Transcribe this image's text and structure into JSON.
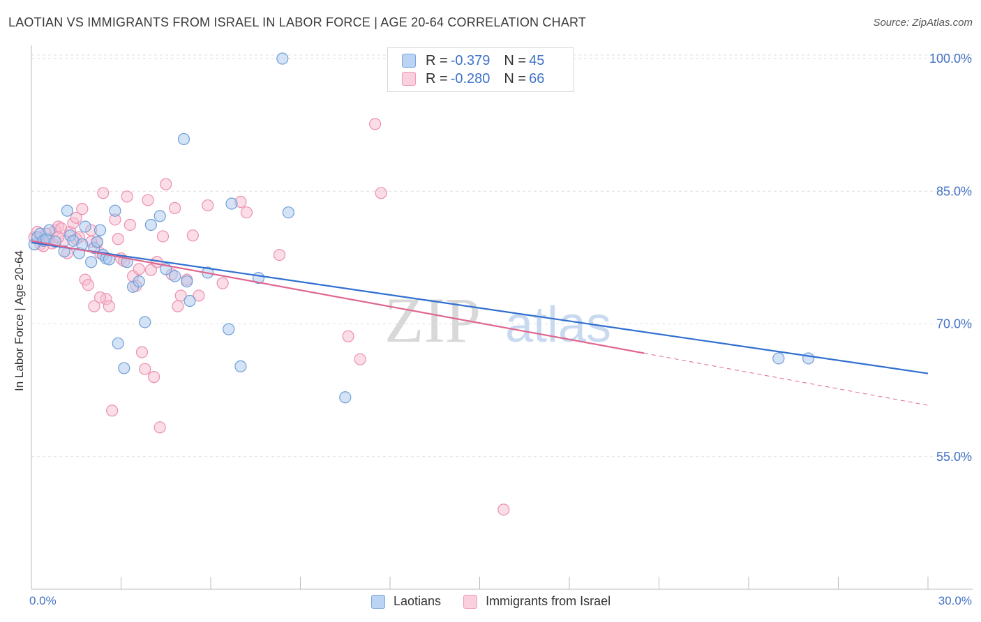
{
  "header": {
    "title": "LAOTIAN VS IMMIGRANTS FROM ISRAEL IN LABOR FORCE | AGE 20-64 CORRELATION CHART",
    "source": "Source: ZipAtlas.com"
  },
  "watermark": {
    "zip": "ZIP",
    "atlas": "atlas"
  },
  "legend_top": {
    "rows": [
      {
        "r_label": "R = ",
        "r_value": "-0.379",
        "n_label": "N = ",
        "n_value": "45"
      },
      {
        "r_label": "R = ",
        "r_value": "-0.280",
        "n_label": "N = ",
        "n_value": "66"
      }
    ]
  },
  "colors": {
    "blue_fill": "#a9c8ee",
    "blue_stroke": "#6f9fd8",
    "blue_line": "#2f6fcf",
    "pink_fill": "#f7bcd0",
    "pink_stroke": "#eb90ae",
    "pink_line": "#e0668f",
    "axis_text": "#4472c4",
    "grid": "#dddddd"
  },
  "chart_data": {
    "type": "scatter",
    "title": "LAOTIAN VS IMMIGRANTS FROM ISRAEL IN LABOR FORCE | AGE 20-64 CORRELATION CHART",
    "xlabel": "",
    "ylabel": "In Labor Force | Age 20-64",
    "xlim": [
      0,
      30
    ],
    "ylim": [
      40,
      101.5
    ],
    "x_tick_labels": [
      "0.0%",
      "30.0%"
    ],
    "y_ticks": [
      55,
      70,
      85,
      100
    ],
    "y_tick_labels": [
      "55.0%",
      "70.0%",
      "85.0%",
      "100.0%"
    ],
    "grid": true,
    "legend_placement": "bottom-center",
    "series": [
      {
        "name": "Laotians",
        "color": "#a9c8ee",
        "r": -0.379,
        "n": 45,
        "trend": {
          "x0": 0.0,
          "y0": 79.2,
          "x1": 30.0,
          "y1": 64.4,
          "dashed_from": null
        },
        "points": [
          [
            0.1,
            79.0
          ],
          [
            0.2,
            79.8
          ],
          [
            0.3,
            80.2
          ],
          [
            0.4,
            79.4
          ],
          [
            0.5,
            79.6
          ],
          [
            0.6,
            80.6
          ],
          [
            0.8,
            79.3
          ],
          [
            1.1,
            78.2
          ],
          [
            1.2,
            82.8
          ],
          [
            1.3,
            80.0
          ],
          [
            1.4,
            79.4
          ],
          [
            1.6,
            78.0
          ],
          [
            1.7,
            79.0
          ],
          [
            1.8,
            81.0
          ],
          [
            2.0,
            77.0
          ],
          [
            2.1,
            78.6
          ],
          [
            2.2,
            79.3
          ],
          [
            2.3,
            80.6
          ],
          [
            2.4,
            77.8
          ],
          [
            2.5,
            77.4
          ],
          [
            2.6,
            77.3
          ],
          [
            2.8,
            82.8
          ],
          [
            2.9,
            67.8
          ],
          [
            3.1,
            65.0
          ],
          [
            3.2,
            77.0
          ],
          [
            3.4,
            74.2
          ],
          [
            3.6,
            74.8
          ],
          [
            3.8,
            70.2
          ],
          [
            4.0,
            81.2
          ],
          [
            4.3,
            82.2
          ],
          [
            4.5,
            76.2
          ],
          [
            4.8,
            75.4
          ],
          [
            5.1,
            90.9
          ],
          [
            5.2,
            74.8
          ],
          [
            5.3,
            72.6
          ],
          [
            5.9,
            75.8
          ],
          [
            6.6,
            69.4
          ],
          [
            6.7,
            83.6
          ],
          [
            7.0,
            65.2
          ],
          [
            7.6,
            75.2
          ],
          [
            8.4,
            100.0
          ],
          [
            8.6,
            82.6
          ],
          [
            10.5,
            61.7
          ],
          [
            25.0,
            66.1
          ],
          [
            26.0,
            66.1
          ]
        ]
      },
      {
        "name": "Immigrants from Israel",
        "color": "#f7bcd0",
        "r": -0.28,
        "n": 66,
        "trend": {
          "x0": 0.0,
          "y0": 79.4,
          "x1": 30.0,
          "y1": 60.8,
          "dashed_from": 20.5
        },
        "points": [
          [
            0.1,
            79.8
          ],
          [
            0.2,
            80.4
          ],
          [
            0.3,
            79.0
          ],
          [
            0.4,
            78.8
          ],
          [
            0.5,
            80.2
          ],
          [
            0.6,
            79.6
          ],
          [
            0.7,
            79.1
          ],
          [
            0.8,
            80.6
          ],
          [
            0.9,
            81.0
          ],
          [
            1.0,
            80.8
          ],
          [
            1.1,
            79.4
          ],
          [
            1.2,
            78.0
          ],
          [
            1.3,
            80.4
          ],
          [
            1.4,
            81.4
          ],
          [
            1.5,
            82.0
          ],
          [
            1.6,
            79.8
          ],
          [
            1.7,
            83.0
          ],
          [
            1.8,
            75.0
          ],
          [
            1.9,
            74.4
          ],
          [
            2.0,
            80.6
          ],
          [
            2.1,
            72.0
          ],
          [
            2.2,
            79.2
          ],
          [
            2.3,
            78.0
          ],
          [
            2.4,
            84.8
          ],
          [
            2.5,
            72.8
          ],
          [
            2.6,
            72.0
          ],
          [
            2.7,
            60.2
          ],
          [
            2.8,
            81.8
          ],
          [
            2.9,
            79.6
          ],
          [
            3.0,
            77.4
          ],
          [
            3.1,
            77.1
          ],
          [
            3.2,
            84.4
          ],
          [
            3.3,
            81.2
          ],
          [
            3.4,
            75.4
          ],
          [
            3.5,
            74.3
          ],
          [
            3.6,
            76.2
          ],
          [
            3.7,
            66.8
          ],
          [
            3.8,
            64.9
          ],
          [
            3.9,
            84.0
          ],
          [
            4.0,
            76.1
          ],
          [
            4.1,
            64.0
          ],
          [
            4.2,
            77.0
          ],
          [
            4.3,
            58.3
          ],
          [
            4.4,
            79.9
          ],
          [
            4.5,
            85.8
          ],
          [
            4.7,
            75.6
          ],
          [
            4.8,
            83.1
          ],
          [
            4.9,
            72.0
          ],
          [
            5.0,
            73.2
          ],
          [
            5.2,
            75.0
          ],
          [
            5.4,
            80.0
          ],
          [
            5.6,
            73.2
          ],
          [
            5.9,
            83.4
          ],
          [
            6.4,
            74.6
          ],
          [
            7.0,
            83.8
          ],
          [
            7.2,
            82.6
          ],
          [
            8.3,
            77.8
          ],
          [
            10.6,
            68.6
          ],
          [
            11.0,
            66.0
          ],
          [
            11.5,
            92.6
          ],
          [
            11.7,
            84.8
          ],
          [
            15.8,
            49.0
          ],
          [
            1.5,
            79.6
          ],
          [
            2.0,
            79.3
          ],
          [
            0.9,
            79.8
          ],
          [
            2.3,
            73.0
          ]
        ]
      }
    ]
  },
  "axes": {
    "ylabel": "In Labor Force | Age 20-64",
    "x_left": "0.0%",
    "x_right": "30.0%",
    "y_ticks": [
      "100.0%",
      "85.0%",
      "70.0%",
      "55.0%"
    ]
  },
  "legend_bottom": {
    "items": [
      {
        "label": "Laotians"
      },
      {
        "label": "Immigrants from Israel"
      }
    ]
  }
}
